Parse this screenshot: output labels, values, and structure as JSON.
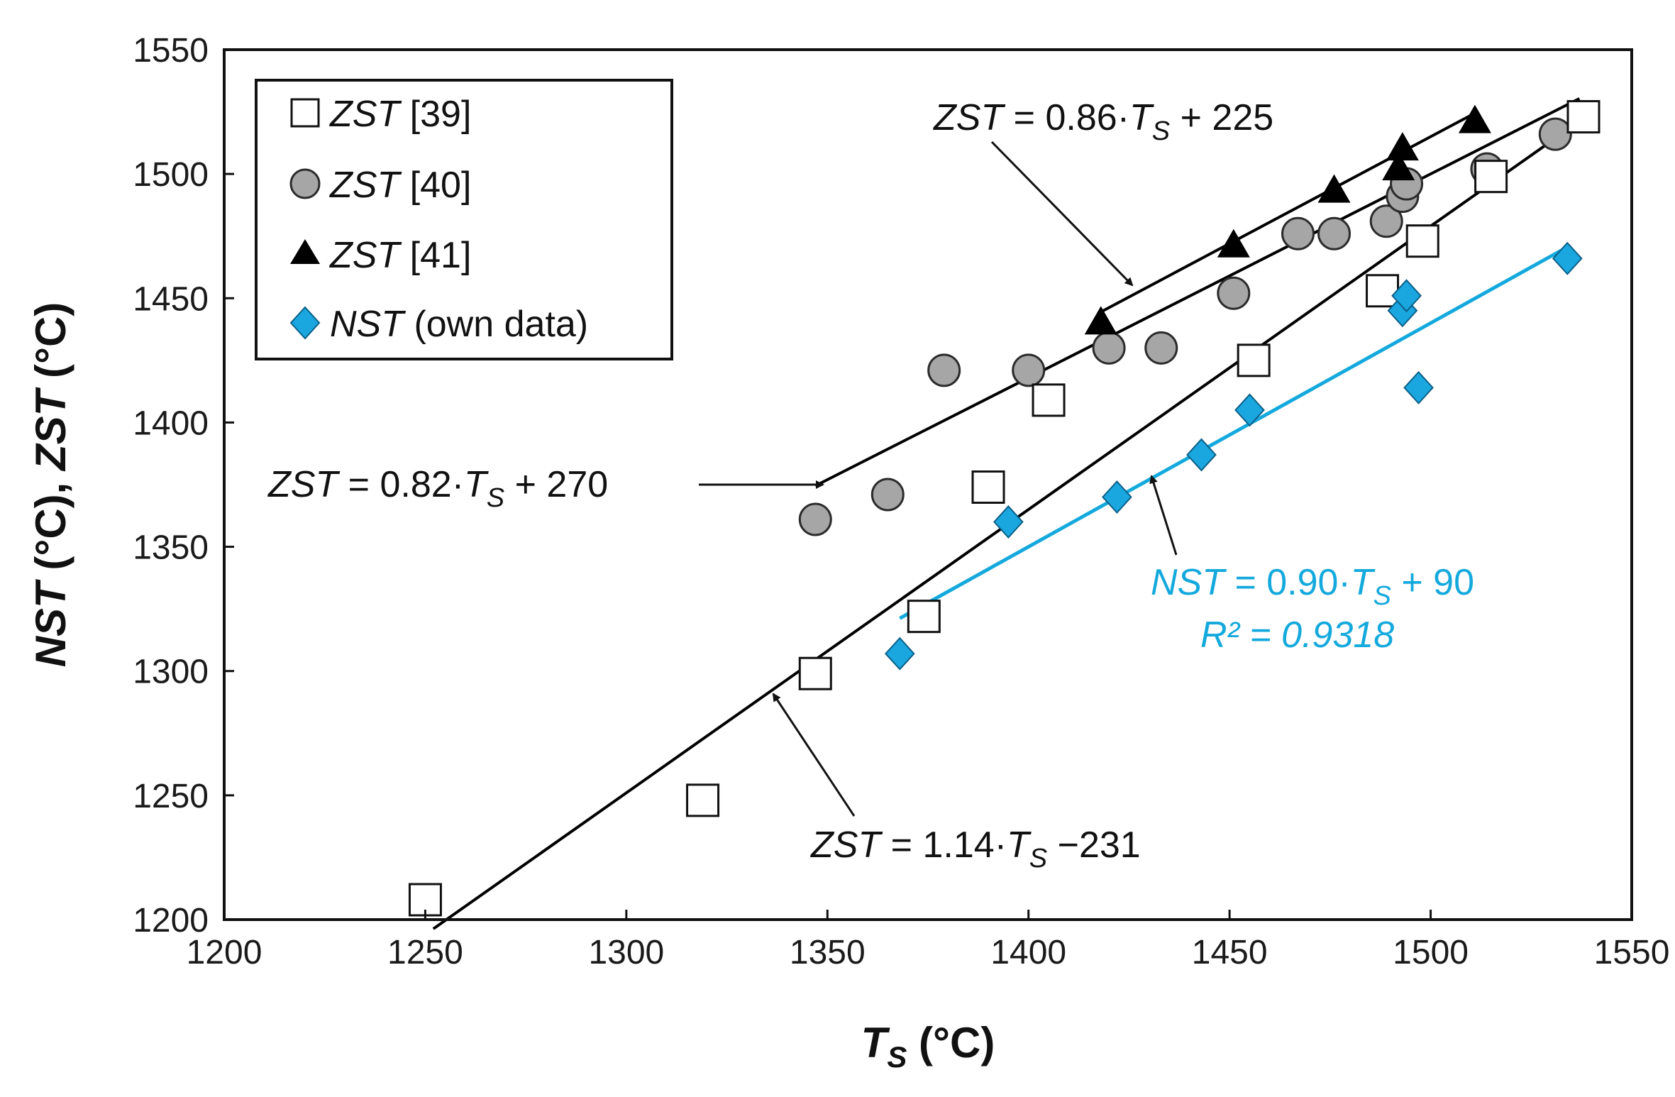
{
  "chart_data": {
    "type": "scatter",
    "title": "",
    "xlabel": {
      "main": "T",
      "sub": "S",
      "unit": " (°C)"
    },
    "ylabel": {
      "part1": "NST",
      "part2": " (°C), ",
      "part3": "ZST",
      "part4": " (°C)"
    },
    "xlim": [
      1200,
      1550
    ],
    "ylim": [
      1200,
      1550
    ],
    "xticks": [
      1200,
      1250,
      1300,
      1350,
      1400,
      1450,
      1500,
      1550
    ],
    "yticks": [
      1200,
      1250,
      1300,
      1350,
      1400,
      1450,
      1500,
      1550
    ],
    "grid": false,
    "legend_position": "top-left",
    "series": [
      {
        "name": "ZST [39]",
        "legend": {
          "italic": "ZST",
          "rest": " [39]"
        },
        "marker": "open-square",
        "color": "#000000",
        "points": [
          [
            1250,
            1208
          ],
          [
            1319,
            1248
          ],
          [
            1347,
            1299
          ],
          [
            1374,
            1322
          ],
          [
            1390,
            1374
          ],
          [
            1405,
            1409
          ],
          [
            1456,
            1425
          ],
          [
            1488,
            1453
          ],
          [
            1498,
            1473
          ],
          [
            1515,
            1499
          ],
          [
            1538,
            1523
          ]
        ]
      },
      {
        "name": "ZST [40]",
        "legend": {
          "italic": "ZST",
          "rest": " [40]"
        },
        "marker": "circle",
        "color": "#a6a6a6",
        "points": [
          [
            1347,
            1361
          ],
          [
            1365,
            1371
          ],
          [
            1379,
            1421
          ],
          [
            1400,
            1421
          ],
          [
            1420,
            1430
          ],
          [
            1433,
            1430
          ],
          [
            1451,
            1452
          ],
          [
            1467,
            1476
          ],
          [
            1476,
            1476
          ],
          [
            1489,
            1481
          ],
          [
            1493,
            1491
          ],
          [
            1494,
            1496
          ],
          [
            1514,
            1502
          ],
          [
            1531,
            1516
          ]
        ]
      },
      {
        "name": "ZST [41]",
        "legend": {
          "italic": "ZST",
          "rest": " [41]"
        },
        "marker": "triangle",
        "color": "#000000",
        "points": [
          [
            1418,
            1440
          ],
          [
            1451,
            1471
          ],
          [
            1476,
            1493
          ],
          [
            1492,
            1502
          ],
          [
            1493,
            1510
          ],
          [
            1511,
            1521
          ]
        ]
      },
      {
        "name": "NST (own data)",
        "legend": {
          "italic": "NST",
          "rest": " (own data)"
        },
        "marker": "diamond",
        "color": "#1aa7e0",
        "points": [
          [
            1368,
            1307
          ],
          [
            1395,
            1360
          ],
          [
            1422,
            1370
          ],
          [
            1443,
            1387
          ],
          [
            1455,
            1405
          ],
          [
            1493,
            1445
          ],
          [
            1494,
            1451
          ],
          [
            1497,
            1414
          ],
          [
            1534,
            1466
          ]
        ]
      }
    ],
    "fit_lines": [
      {
        "name": "fit-zst-39",
        "color": "#000000",
        "x_range": [
          1252,
          1538
        ],
        "slope": 1.14,
        "intercept": -231
      },
      {
        "name": "fit-zst-40",
        "color": "#000000",
        "x_range": [
          1347,
          1537
        ],
        "slope": 0.82,
        "intercept": 270
      },
      {
        "name": "fit-zst-41",
        "color": "#000000",
        "x_range": [
          1418,
          1511
        ],
        "slope": 0.86,
        "intercept": 225
      },
      {
        "name": "fit-nst",
        "color": "#14a9dd",
        "x_range": [
          1368,
          1534
        ],
        "slope": 0.9,
        "intercept": 90
      }
    ],
    "annotations": [
      {
        "name": "eq-zst-41",
        "var": "ZST",
        "coef": " = 0.86·",
        "ts": "T",
        "sub": "S",
        "tail": " + 225",
        "color": "#111111"
      },
      {
        "name": "eq-zst-40",
        "var": "ZST",
        "coef": " = 0.82·",
        "ts": "T",
        "sub": "S",
        "tail": " + 270",
        "color": "#111111"
      },
      {
        "name": "eq-nst",
        "var": "NST",
        "coef": " = 0.90·",
        "ts": "T",
        "sub": "S",
        "tail": " + 90",
        "color": "#14a9dd"
      },
      {
        "name": "r2-nst",
        "text": "R² = 0.9318",
        "color": "#14a9dd"
      },
      {
        "name": "eq-zst-39",
        "var": "ZST",
        "coef": " = 1.14·",
        "ts": "T",
        "sub": "S",
        "tail": " −231",
        "color": "#111111"
      }
    ]
  }
}
